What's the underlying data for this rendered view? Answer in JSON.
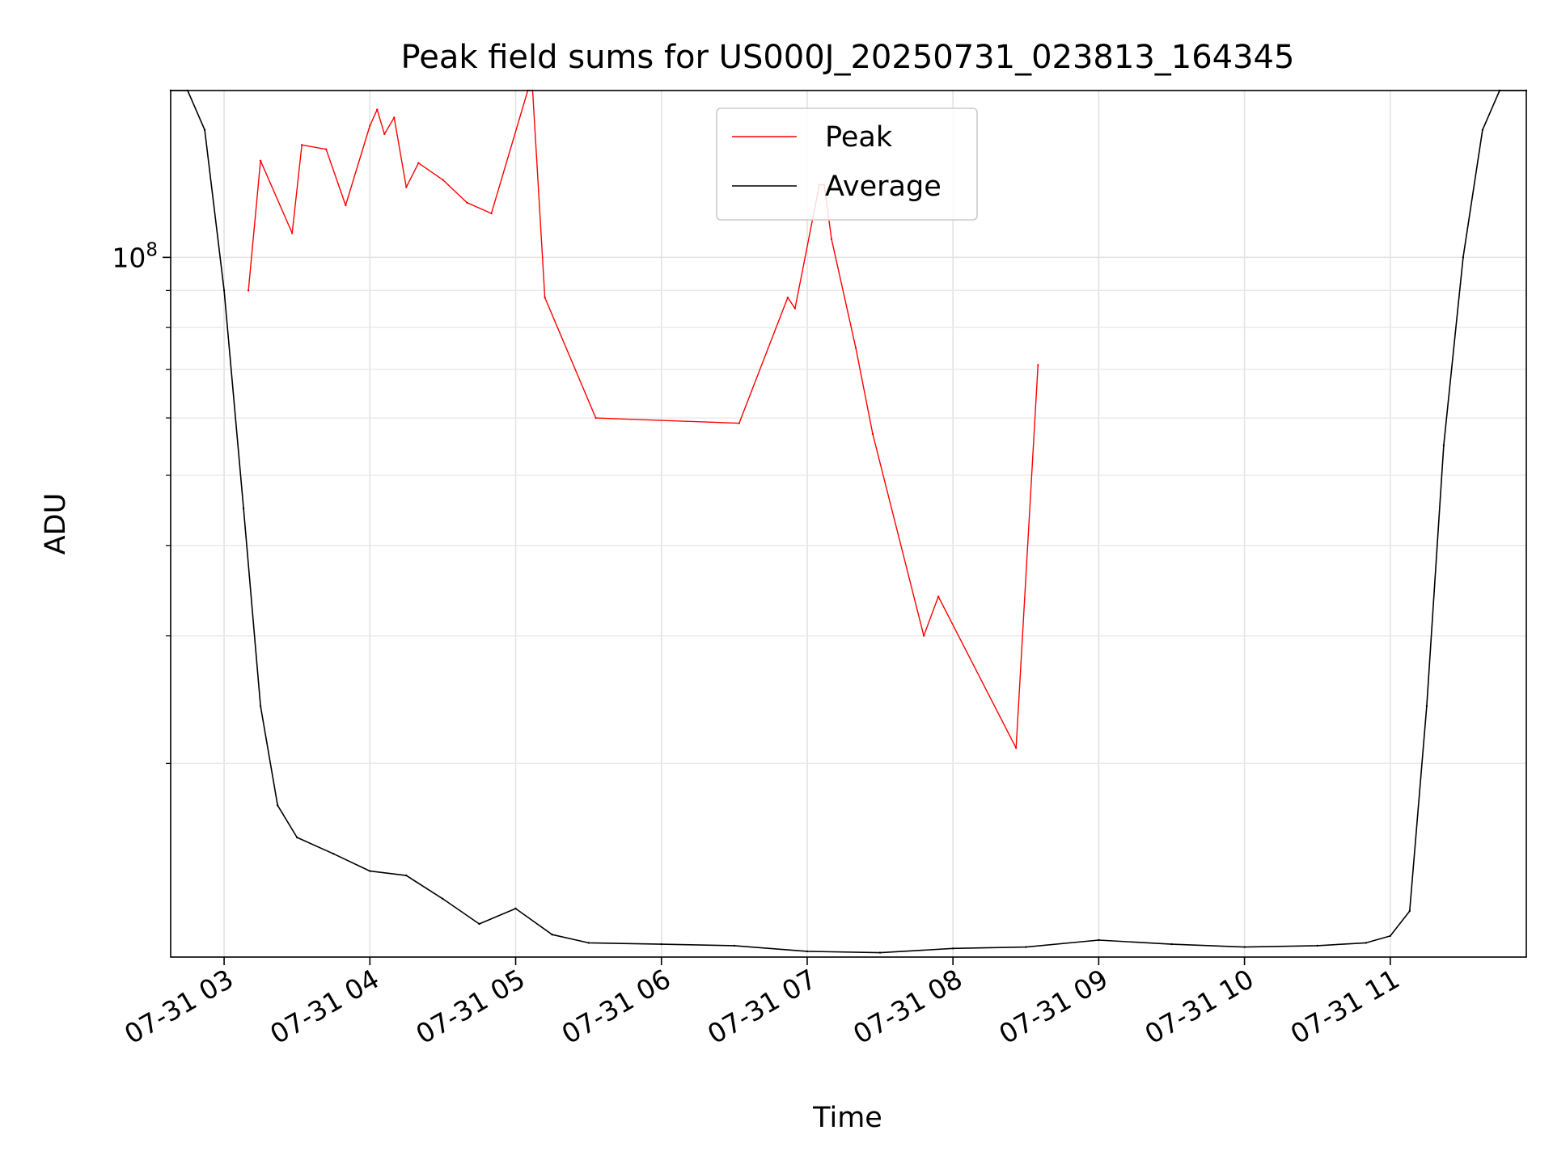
{
  "chart_data": {
    "type": "line",
    "title": "Peak field sums for US000J_20250731_023813_164345",
    "xlabel": "Time",
    "ylabel": "ADU",
    "y_scale": "log",
    "ylim": [
      10800000,
      170000000
    ],
    "xlim": [
      "2025-07-31 02:38",
      "2025-07-31 11:56"
    ],
    "x_tick_labels": [
      "07-31 03",
      "07-31 04",
      "07-31 05",
      "07-31 06",
      "07-31 07",
      "07-31 08",
      "07-31 09",
      "07-31 10",
      "07-31 11"
    ],
    "x_tick_values": [
      "2025-07-31 03:00",
      "2025-07-31 04:00",
      "2025-07-31 05:00",
      "2025-07-31 06:00",
      "2025-07-31 07:00",
      "2025-07-31 08:00",
      "2025-07-31 09:00",
      "2025-07-31 10:00",
      "2025-07-31 11:00"
    ],
    "y_tick_labels": [
      {
        "base": "10",
        "exp": "8",
        "value": 100000000
      }
    ],
    "grid": true,
    "legend_position": "top-center",
    "series": [
      {
        "name": "Peak",
        "color": "#ff0000",
        "x": [
          "2025-07-31 03:10",
          "2025-07-31 03:15",
          "2025-07-31 03:28",
          "2025-07-31 03:32",
          "2025-07-31 03:42",
          "2025-07-31 03:50",
          "2025-07-31 04:00",
          "2025-07-31 04:03",
          "2025-07-31 04:06",
          "2025-07-31 04:10",
          "2025-07-31 04:15",
          "2025-07-31 04:20",
          "2025-07-31 04:30",
          "2025-07-31 04:40",
          "2025-07-31 04:50",
          "2025-07-31 05:05",
          "2025-07-31 05:07",
          "2025-07-31 05:12",
          "2025-07-31 05:33",
          "2025-07-31 06:32",
          "2025-07-31 06:52",
          "2025-07-31 06:55",
          "2025-07-31 07:05",
          "2025-07-31 07:07",
          "2025-07-31 07:10",
          "2025-07-31 07:20",
          "2025-07-31 07:27",
          "2025-07-31 07:48",
          "2025-07-31 07:54",
          "2025-07-31 08:26",
          "2025-07-31 08:35"
        ],
        "values": [
          90000000,
          136000000,
          108000000,
          143000000,
          141000000,
          118000000,
          152000000,
          160000000,
          148000000,
          156000000,
          125000000,
          135000000,
          128000000,
          119000000,
          115000000,
          170000000,
          170000000,
          88000000,
          60000000,
          59000000,
          88000000,
          85000000,
          126000000,
          126000000,
          106000000,
          75000000,
          57000000,
          30000000,
          34000000,
          21000000,
          71000000
        ]
      },
      {
        "name": "Average",
        "color": "#000000",
        "x": [
          "2025-07-31 02:38",
          "2025-07-31 02:45",
          "2025-07-31 02:52",
          "2025-07-31 03:00",
          "2025-07-31 03:08",
          "2025-07-31 03:15",
          "2025-07-31 03:22",
          "2025-07-31 03:30",
          "2025-07-31 03:45",
          "2025-07-31 04:00",
          "2025-07-31 04:15",
          "2025-07-31 04:30",
          "2025-07-31 04:45",
          "2025-07-31 05:00",
          "2025-07-31 05:15",
          "2025-07-31 05:30",
          "2025-07-31 06:00",
          "2025-07-31 06:30",
          "2025-07-31 07:00",
          "2025-07-31 07:30",
          "2025-07-31 08:00",
          "2025-07-31 08:30",
          "2025-07-31 09:00",
          "2025-07-31 09:30",
          "2025-07-31 10:00",
          "2025-07-31 10:30",
          "2025-07-31 10:50",
          "2025-07-31 11:00",
          "2025-07-31 11:08",
          "2025-07-31 11:15",
          "2025-07-31 11:22",
          "2025-07-31 11:30",
          "2025-07-31 11:38",
          "2025-07-31 11:45",
          "2025-07-31 11:56"
        ],
        "values": [
          170000000,
          170000000,
          150000000,
          90000000,
          45000000,
          24000000,
          17500000,
          15800000,
          15000000,
          14200000,
          14000000,
          13000000,
          12000000,
          12600000,
          11600000,
          11300000,
          11250000,
          11200000,
          11000000,
          10950000,
          11100000,
          11150000,
          11400000,
          11250000,
          11150000,
          11200000,
          11300000,
          11550000,
          12500000,
          24000000,
          55000000,
          100000000,
          150000000,
          170000000,
          170000000
        ]
      }
    ]
  }
}
